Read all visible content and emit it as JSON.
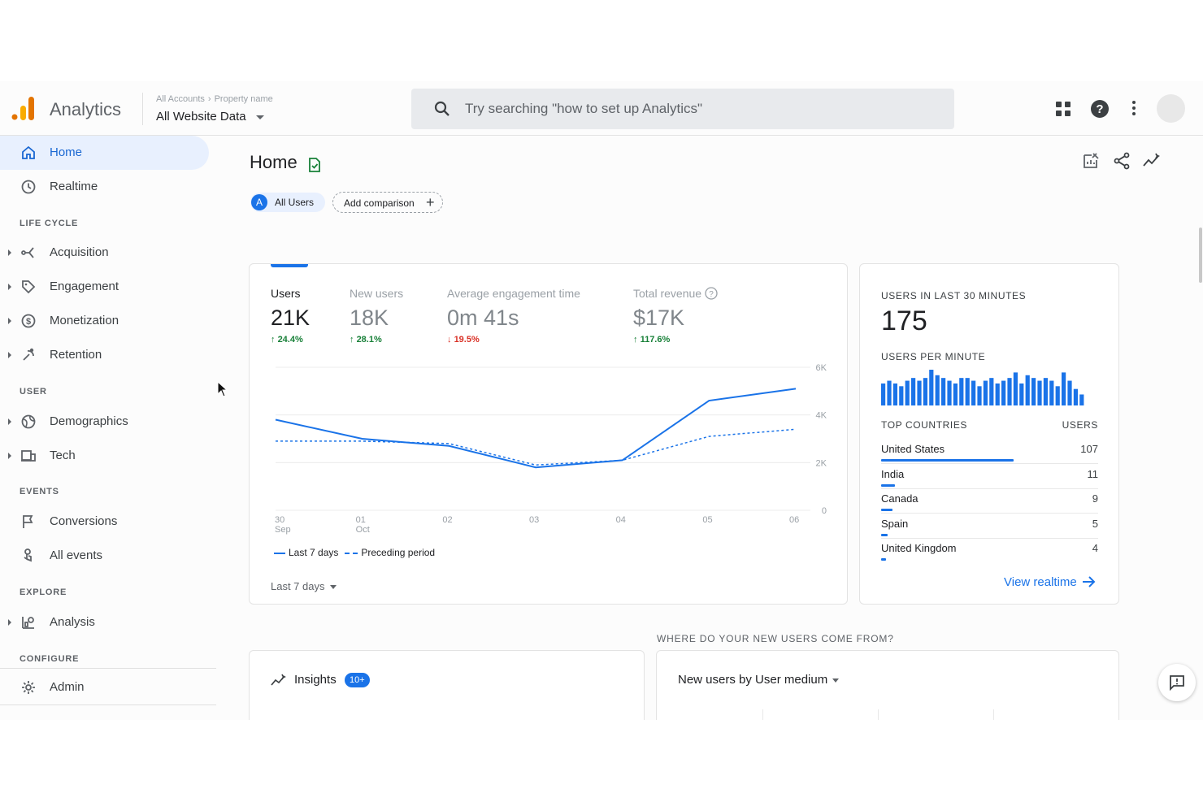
{
  "header": {
    "app_name": "Analytics",
    "breadcrumb": [
      "All Accounts",
      "Property name"
    ],
    "property": "All Website Data",
    "search_placeholder": "Try searching \"how to set up Analytics\"",
    "icons": [
      "apps-grid-icon",
      "help-icon",
      "more-vert-icon",
      "account-avatar"
    ]
  },
  "sidebar": {
    "items": [
      {
        "label": "Home",
        "icon": "home-icon",
        "active": true
      },
      {
        "label": "Realtime",
        "icon": "clock-icon"
      }
    ],
    "sections": [
      {
        "title": "LIFE CYCLE",
        "items": [
          {
            "label": "Acquisition",
            "icon": "acquisition-icon"
          },
          {
            "label": "Engagement",
            "icon": "engagement-icon"
          },
          {
            "label": "Monetization",
            "icon": "dollar-icon"
          },
          {
            "label": "Retention",
            "icon": "retention-icon"
          }
        ]
      },
      {
        "title": "USER",
        "items": [
          {
            "label": "Demographics",
            "icon": "globe-icon"
          },
          {
            "label": "Tech",
            "icon": "devices-icon"
          }
        ]
      },
      {
        "title": "EVENTS",
        "items": [
          {
            "label": "Conversions",
            "icon": "flag-icon"
          },
          {
            "label": "All events",
            "icon": "touch-icon"
          }
        ]
      },
      {
        "title": "EXPLORE",
        "items": [
          {
            "label": "Analysis",
            "icon": "analysis-icon"
          }
        ]
      },
      {
        "title": "CONFIGURE",
        "items": [
          {
            "label": "Admin",
            "icon": "gear-icon"
          }
        ]
      }
    ]
  },
  "main": {
    "title": "Home",
    "chip_all_users": "All Users",
    "chip_avatar_letter": "A",
    "add_comparison": "Add comparison",
    "metrics": [
      {
        "label": "Users",
        "value": "21K",
        "delta": "24.4%",
        "direction": "up"
      },
      {
        "label": "New users",
        "value": "18K",
        "delta": "28.1%",
        "direction": "up"
      },
      {
        "label": "Average engagement time",
        "value": "0m 41s",
        "delta": "19.5%",
        "direction": "down"
      },
      {
        "label": "Total revenue",
        "value": "$17K",
        "delta": "117.6%",
        "direction": "up"
      }
    ],
    "legend": {
      "current": "Last 7 days",
      "previous": "Preceding period"
    },
    "date_range": "Last 7 days"
  },
  "chart_data": {
    "type": "line",
    "x": [
      "30 Sep",
      "01 Oct",
      "02",
      "03",
      "04",
      "05",
      "06"
    ],
    "x_tick_labels": [
      [
        "30",
        "Sep"
      ],
      [
        "01",
        "Oct"
      ],
      [
        "02"
      ],
      [
        "03"
      ],
      [
        "04"
      ],
      [
        "05"
      ],
      [
        "06"
      ]
    ],
    "y_ticks": [
      "0",
      "2K",
      "4K",
      "6K"
    ],
    "ylim": [
      0,
      6000
    ],
    "series": [
      {
        "name": "Last 7 days",
        "style": "solid",
        "values": [
          3800,
          3000,
          2700,
          1800,
          2100,
          4600,
          5100
        ]
      },
      {
        "name": "Preceding period",
        "style": "dashed",
        "values": [
          2900,
          2900,
          2800,
          1900,
          2100,
          3100,
          3400
        ]
      }
    ],
    "grid": true
  },
  "realtime": {
    "title": "USERS IN LAST 30 MINUTES",
    "value": "175",
    "subtitle": "USERS PER MINUTE",
    "per_minute": [
      8,
      9,
      8,
      7,
      9,
      10,
      9,
      10,
      13,
      11,
      10,
      9,
      8,
      10,
      10,
      9,
      7,
      9,
      10,
      8,
      9,
      10,
      12,
      8,
      11,
      10,
      9,
      10,
      9,
      7,
      12,
      9,
      6,
      4
    ],
    "countries_header": "TOP COUNTRIES",
    "users_header": "USERS",
    "countries": [
      {
        "name": "United States",
        "users": "107",
        "share": 107
      },
      {
        "name": "India",
        "users": "11",
        "share": 11
      },
      {
        "name": "Canada",
        "users": "9",
        "share": 9
      },
      {
        "name": "Spain",
        "users": "5",
        "share": 5
      },
      {
        "name": "United Kingdom",
        "users": "4",
        "share": 4
      }
    ],
    "view_link": "View realtime"
  },
  "bottom": {
    "where_title": "WHERE DO YOUR NEW USERS COME FROM?",
    "insights_label": "Insights",
    "insights_badge": "10+",
    "medium_label": "New users by User medium"
  },
  "colors": {
    "accent": "#1a73e8",
    "up": "#188038",
    "down": "#d93025",
    "logo_orange": "#f9ab00",
    "logo_dark_orange": "#e37400"
  }
}
